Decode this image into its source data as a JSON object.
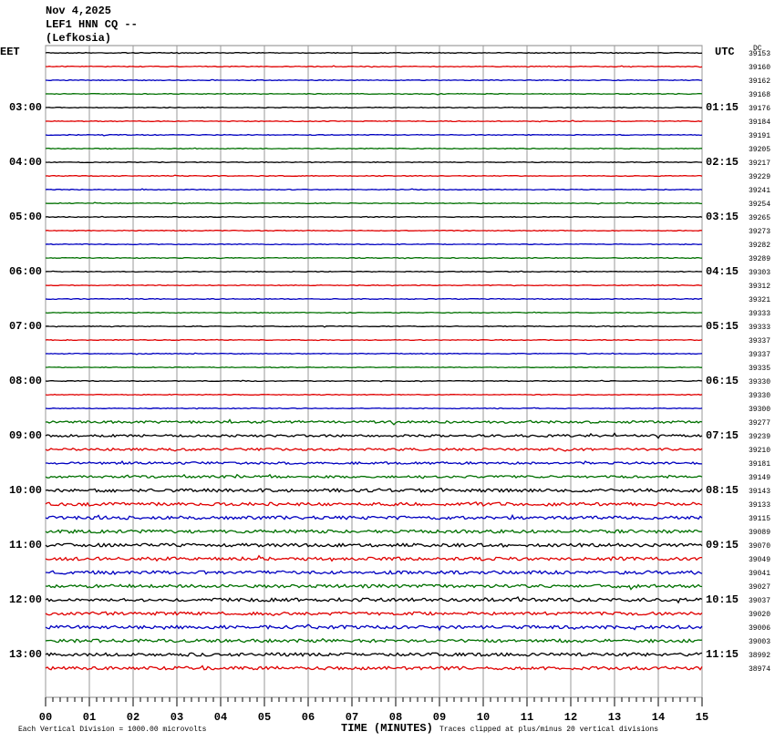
{
  "header": {
    "date": "Nov 4,2025",
    "station": "LEF1 HNN CQ --",
    "location": "(Lefkosia)"
  },
  "left_zone": "EET",
  "right_zone": "UTC",
  "corner": "DC",
  "left_labels": [
    "03:00",
    "04:00",
    "05:00",
    "06:00",
    "07:00",
    "08:00",
    "09:00",
    "10:00",
    "11:00",
    "12:00",
    "13:00"
  ],
  "right_labels": [
    "01:15",
    "02:15",
    "03:15",
    "04:15",
    "05:15",
    "06:15",
    "07:15",
    "08:15",
    "09:15",
    "10:15",
    "11:15"
  ],
  "row_counts": [
    39153,
    39160,
    39162,
    39168,
    39176,
    39184,
    39191,
    39205,
    39217,
    39229,
    39241,
    39254,
    39265,
    39273,
    39282,
    39289,
    39303,
    39312,
    39321,
    39333,
    39333,
    39337,
    39337,
    39335,
    39330,
    39330,
    39300,
    39277,
    39239,
    39210,
    39181,
    39149,
    39143,
    39133,
    39115,
    39089,
    39070,
    39049,
    39041,
    39027,
    39037,
    39020,
    39006,
    39003,
    38992,
    38974
  ],
  "trace_colors": [
    "#000000",
    "#e00000",
    "#0000c0",
    "#007000"
  ],
  "x_tick_labels": [
    "00",
    "01",
    "02",
    "03",
    "04",
    "05",
    "06",
    "07",
    "08",
    "09",
    "10",
    "11",
    "12",
    "13",
    "14",
    "15"
  ],
  "x_axis_title": "TIME (MINUTES)",
  "scale_note": "Each Vertical Division = 1000.00 microvolts",
  "clip_note": "Traces clipped at plus/minus 20 vertical divisions"
}
